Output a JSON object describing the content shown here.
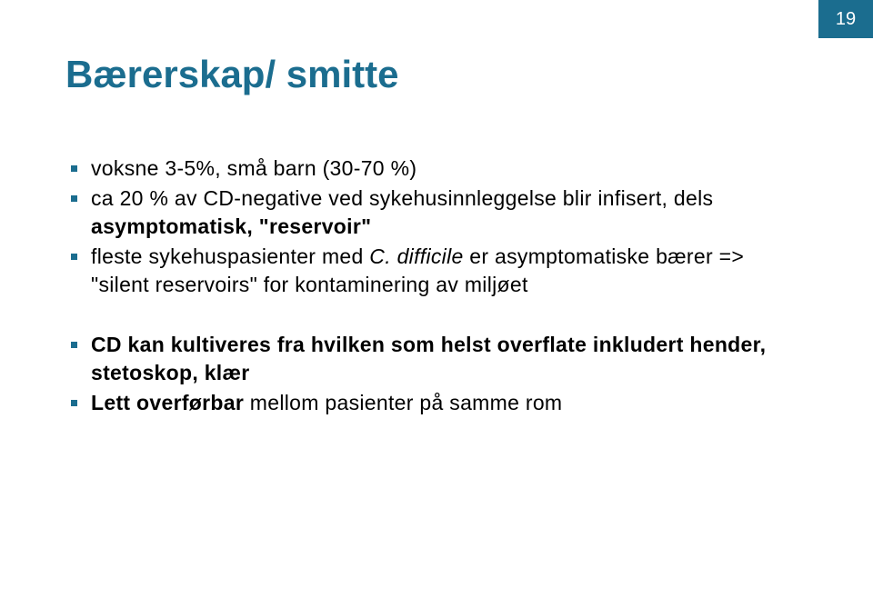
{
  "page_number": "19",
  "title": "Bærerskap/ smitte",
  "colors": {
    "accent": "#1b6d8f",
    "text": "#000000",
    "background": "#ffffff",
    "page_number_text": "#ffffff"
  },
  "typography": {
    "title_fontsize": 42,
    "title_weight": "bold",
    "body_fontsize": 23,
    "font_family": "Verdana"
  },
  "bullets": [
    {
      "segments": [
        {
          "text": "voksne 3-5%, små barn (30-70 %)"
        }
      ]
    },
    {
      "segments": [
        {
          "text": "ca 20 % av CD-negative ved sykehusinnleggelse blir infisert, dels "
        },
        {
          "text": "asymptomatisk, \"reservoir\"",
          "bold": true
        }
      ]
    },
    {
      "segments": [
        {
          "text": "fleste sykehuspasienter med "
        },
        {
          "text": "C. difficile",
          "italic": true
        },
        {
          "text": " er asymptomatiske bærer => \"silent reservoirs\" for kontaminering av miljøet"
        }
      ]
    },
    {
      "spacer": true
    },
    {
      "segments": [
        {
          "text": "CD kan ",
          "bold": true
        },
        {
          "text": "kultiveres fra hvilken som helst overflate inkludert hender, stetoskop, klær",
          "bold": true
        }
      ]
    },
    {
      "segments": [
        {
          "text": "Lett overførbar",
          "bold": true
        },
        {
          "text": " mellom pasienter på samme rom"
        }
      ]
    }
  ]
}
